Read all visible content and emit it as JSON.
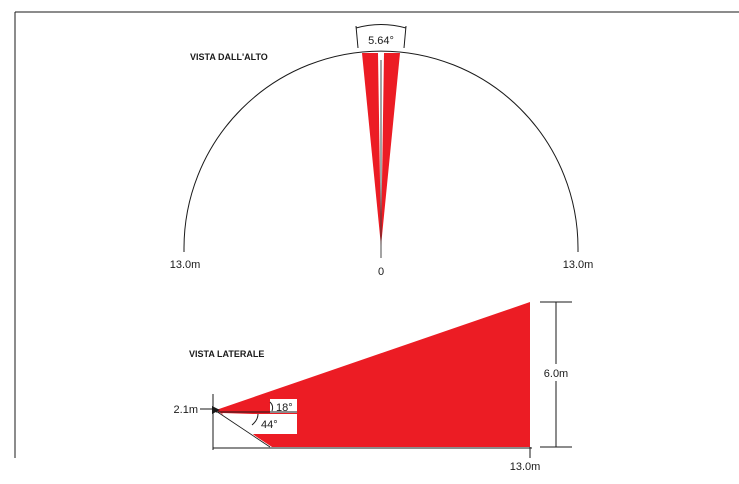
{
  "top_view": {
    "title": "VISTA DALL'ALTO",
    "beam_angle": "5.64°",
    "left_radius": "13.0m",
    "right_radius": "13.0m",
    "origin": "0"
  },
  "side_view": {
    "title": "VISTA LATERALE",
    "mount_height": "2.1m",
    "upper_angle": "18°",
    "lower_angle": "44°",
    "far_height": "6.0m",
    "distance": "13.0m"
  },
  "colors": {
    "beam": "#ec1c24",
    "line": "#1a1a1a"
  }
}
